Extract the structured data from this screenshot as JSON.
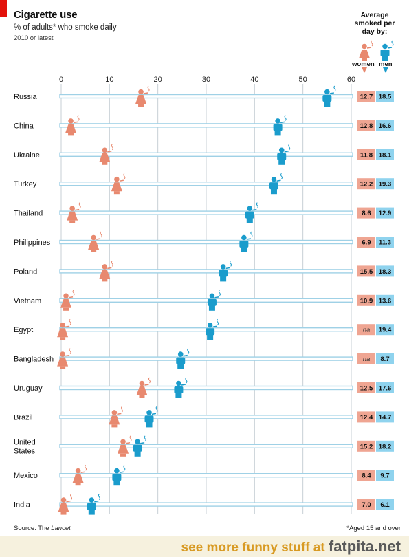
{
  "header": {
    "title": "Cigarette use",
    "subtitle": "% of adults* who smoke daily",
    "note": "2010 or latest"
  },
  "legend": {
    "title": "Average smoked per day by:",
    "women_label": "women",
    "men_label": "men",
    "women_color": "#e8896f",
    "men_color": "#1a9ccc",
    "women_cell_color": "#efa592",
    "men_cell_color": "#8fd3ee"
  },
  "footer": {
    "source_prefix": "Source: The",
    "source_name": "Lancet",
    "footnote": "*Aged 15 and over"
  },
  "banner": {
    "prefix": "see more funny stuff at",
    "site": "fatpita.net"
  },
  "chart_data": {
    "type": "scatter",
    "title": "Cigarette use",
    "subtitle": "% of adults* who smoke daily",
    "xlim": [
      0,
      60
    ],
    "xticks": [
      0,
      10,
      20,
      30,
      40,
      50,
      60
    ],
    "grid": true,
    "categories": [
      "Russia",
      "China",
      "Ukraine",
      "Turkey",
      "Thailand",
      "Philippines",
      "Poland",
      "Vietnam",
      "Egypt",
      "Bangladesh",
      "Uruguay",
      "Brazil",
      "United States",
      "Mexico",
      "India"
    ],
    "series": [
      {
        "name": "women",
        "values": [
          16.5,
          2.0,
          9.0,
          11.5,
          2.3,
          6.7,
          9.0,
          1.0,
          0.3,
          0.3,
          16.7,
          11.0,
          12.8,
          3.5,
          0.5
        ]
      },
      {
        "name": "men",
        "values": [
          55.0,
          44.8,
          45.6,
          44.0,
          39.0,
          37.8,
          33.5,
          31.2,
          30.8,
          24.7,
          24.3,
          18.2,
          15.8,
          11.5,
          6.3
        ]
      }
    ],
    "per_day": {
      "women": [
        "12.7",
        "12.8",
        "11.8",
        "12.2",
        "8.6",
        "6.9",
        "15.5",
        "10.9",
        "na",
        "na",
        "12.5",
        "12.4",
        "15.2",
        "8.4",
        "7.0"
      ],
      "men": [
        "18.5",
        "16.6",
        "18.1",
        "19.3",
        "12.9",
        "11.3",
        "18.3",
        "13.6",
        "19.4",
        "8.7",
        "17.6",
        "14.7",
        "18.2",
        "9.7",
        "6.1"
      ]
    }
  }
}
